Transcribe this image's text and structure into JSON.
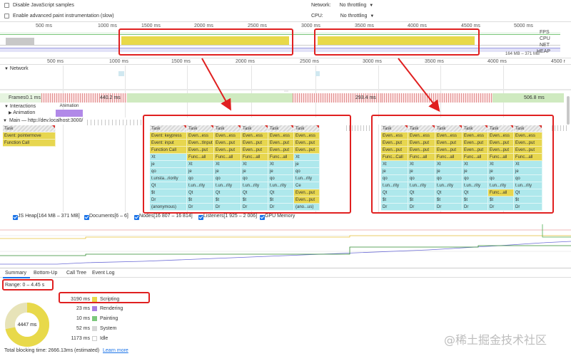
{
  "settings": {
    "disable_js": "Disable JavaScript samples",
    "advanced_paint": "Enable advanced paint instrumentation (slow)",
    "network_label": "Network:",
    "network_value": "No throttling",
    "cpu_label": "CPU:",
    "cpu_value": "No throttling"
  },
  "overview": {
    "ticks": [
      "500 ms",
      "1000 ms",
      "1500 ms",
      "2000 ms",
      "2500 ms",
      "3000 ms",
      "3500 ms",
      "4000 ms",
      "4500 ms",
      "5000 ms"
    ],
    "labels": [
      "FPS",
      "CPU",
      "NET",
      "HEAP"
    ],
    "heap_range": "164 MB – 371 MB"
  },
  "ruler": {
    "ticks": [
      "500 ms",
      "1000 ms",
      "1500 ms",
      "2000 ms",
      "2500 ms",
      "3000 ms",
      "3500 ms",
      "4000 ms",
      "4500 r"
    ]
  },
  "tracks": {
    "network": "Network",
    "frames": "Frames",
    "frame_times": [
      "0.1 ms",
      "440.2 ms",
      "293.4 ms",
      "506.8 ms"
    ],
    "interactions": "Interactions",
    "animation_sub": "Animation",
    "animation_bar": "Animation",
    "main": "Main — http://dev.localhost:3000/"
  },
  "main_left": [
    "Task",
    "Event: pointermove",
    "Function Call"
  ],
  "flame_left": [
    [
      "Task",
      "Event: keypress",
      "Event: input",
      "Function Call",
      "Xt",
      "je",
      "qo",
      "t.unsta...riority",
      "Qt",
      "$t",
      "Dr",
      "(anonymous)"
    ],
    [
      "Task",
      "Even...ress",
      "Even...tInput",
      "Even...put",
      "Func...all",
      "Xt",
      "je",
      "qo",
      "t.un...rity",
      "Qt",
      "$t",
      "Dr",
      "(ano...us)"
    ],
    [
      "Task",
      "Even...ess",
      "Even...put",
      "Even...put",
      "Func...all",
      "Xt",
      "je",
      "qo",
      "t.un...rity",
      "Qt",
      "$t",
      "Dr",
      "(ano...us)"
    ],
    [
      "Task",
      "Even...ess",
      "Even...put",
      "Even...put",
      "Func...all",
      "Xt",
      "je",
      "qo",
      "t.un...rity",
      "Qt",
      "$t",
      "Dr",
      "(ano...us)"
    ],
    [
      "Task",
      "Even...ess",
      "Even...put",
      "Even...put",
      "Func...all",
      "Xt",
      "je",
      "qo",
      "t.un...rity",
      "Qt",
      "$t",
      "Dr",
      "(ano...us)"
    ],
    [
      "Task",
      "Even...ess",
      "Even...put",
      "Even...put",
      "Func...all",
      "Xt",
      "je",
      "qo",
      "t.un...rity",
      "Qt",
      "$t",
      "Dr",
      "(ano...us)"
    ],
    [
      "Task",
      "Even...ess",
      "Even...put",
      "Even...put",
      "Func...all",
      "Xt",
      "je",
      "qo",
      "t.un...rity",
      "Qt",
      "$t",
      "Dr",
      "(ano...us)"
    ]
  ],
  "flame_left_rows": [
    [
      "Task",
      "Event: keypress",
      "Event: input",
      "Function Call",
      "Xt",
      "je",
      "qo",
      "t.unsta...riority",
      "Qt",
      "$t",
      "Dr",
      "(anonymous)"
    ],
    [
      "Task",
      "Even...ess",
      "Even...tInput",
      "Even...put",
      "Func...all",
      "Xt",
      "je",
      "qo",
      "t.un...rity",
      "Qt",
      "$t",
      "Dr",
      "(ano...us)"
    ],
    [
      "Task",
      "Even...ess",
      "Even...put",
      "Even...put",
      "Func...all",
      "Xt",
      "je",
      "qo",
      "t.un...rity",
      "Qt",
      "$t",
      "Dr",
      "(ano...us)"
    ],
    [
      "Task",
      "Even...ess",
      "Even...put",
      "Even...put",
      "Func...all",
      "Xt",
      "je",
      "qo",
      "t.un...rity",
      "Qt",
      "$t",
      "Dr",
      "(ano...us)"
    ],
    [
      "Task",
      "Even...ess",
      "Even...put",
      "Even...put",
      "Func...all",
      "Xt",
      "je",
      "qo",
      "t.un...rity",
      "Qt",
      "$t",
      "Dr",
      "(ano...us)"
    ],
    [
      "Task",
      "Even...ess",
      "Even...put",
      "Even...put",
      "Xt",
      "je",
      "qo",
      "t.un...rity",
      "Ce",
      "Even...put",
      "Even...put",
      "(ano...us)"
    ]
  ],
  "flame_right_rows": [
    [
      "Task",
      "Even...ess",
      "Even...put",
      "Even...put",
      "Func...Call",
      "Xt",
      "je",
      "qo",
      "t.un...rity",
      "Qt",
      "$t",
      "Dr",
      "(ano...us)"
    ],
    [
      "Task",
      "Even...ess",
      "Even...put",
      "Even...put",
      "Func...all",
      "Xt",
      "je",
      "qo",
      "t.un...rity",
      "Qt",
      "$t",
      "Dr",
      "(ano...us)"
    ],
    [
      "Task",
      "Even...ess",
      "Even...put",
      "Even...put",
      "Func...all",
      "Xt",
      "je",
      "qo",
      "t.un...rity",
      "Qt",
      "$t",
      "Dr",
      "(ano...us)"
    ],
    [
      "Task",
      "Even...ess",
      "Even...put",
      "Even...put",
      "Func...all",
      "Xt",
      "je",
      "qo",
      "t.un...rity",
      "Qt",
      "$t",
      "Dr",
      "(ano...us)"
    ],
    [
      "Task",
      "Even...ess",
      "Even...put",
      "Even...put",
      "Func...all",
      "Xt",
      "je",
      "qo",
      "t.un...rity",
      "Func...all",
      "$t",
      "Dr",
      "(ano...us)"
    ],
    [
      "Task",
      "Even...ess",
      "Even...put",
      "Even...put",
      "Func...all",
      "Xt",
      "je",
      "qo",
      "t.un...rity",
      "Qt",
      "$t",
      "Dr",
      "(ano...us)"
    ]
  ],
  "memory_legend": [
    {
      "label": "JS Heap[164 MB – 371 MB]",
      "color": "#8b8bd8",
      "bg": "#dcdcf7"
    },
    {
      "label": "Documents[6 – 6]",
      "color": "#d9302c",
      "bg": "#f7d8d7"
    },
    {
      "label": "Nodes[16 807 – 16 814]",
      "color": "#2e8b2e",
      "bg": "#d4ecd4"
    },
    {
      "label": "Listeners[1 925 – 2 006]",
      "color": "#e8c33a",
      "bg": "#f7efc8"
    },
    {
      "label": "GPU Memory",
      "color": "#8a2be2",
      "bg": "#e8cbf5"
    }
  ],
  "tabs": [
    "Summary",
    "Bottom-Up",
    "Call Tree",
    "Event Log"
  ],
  "summary": {
    "range": "Range: 0 – 4.45 s",
    "total": "4447 ms",
    "rows": [
      {
        "value": "3190 ms",
        "label": "Scripting",
        "color": "#e8d94a"
      },
      {
        "value": "23 ms",
        "label": "Rendering",
        "color": "#a97fe0"
      },
      {
        "value": "10 ms",
        "label": "Painting",
        "color": "#7cc87c"
      },
      {
        "value": "52 ms",
        "label": "System",
        "color": "#d8d8d8"
      },
      {
        "value": "1173 ms",
        "label": "Idle",
        "color": "#ffffff"
      }
    ],
    "blocking": "Total blocking time: 2666.13ms (estimated)",
    "learn_more": "Learn more"
  },
  "watermark": "@稀土掘金技术社区"
}
